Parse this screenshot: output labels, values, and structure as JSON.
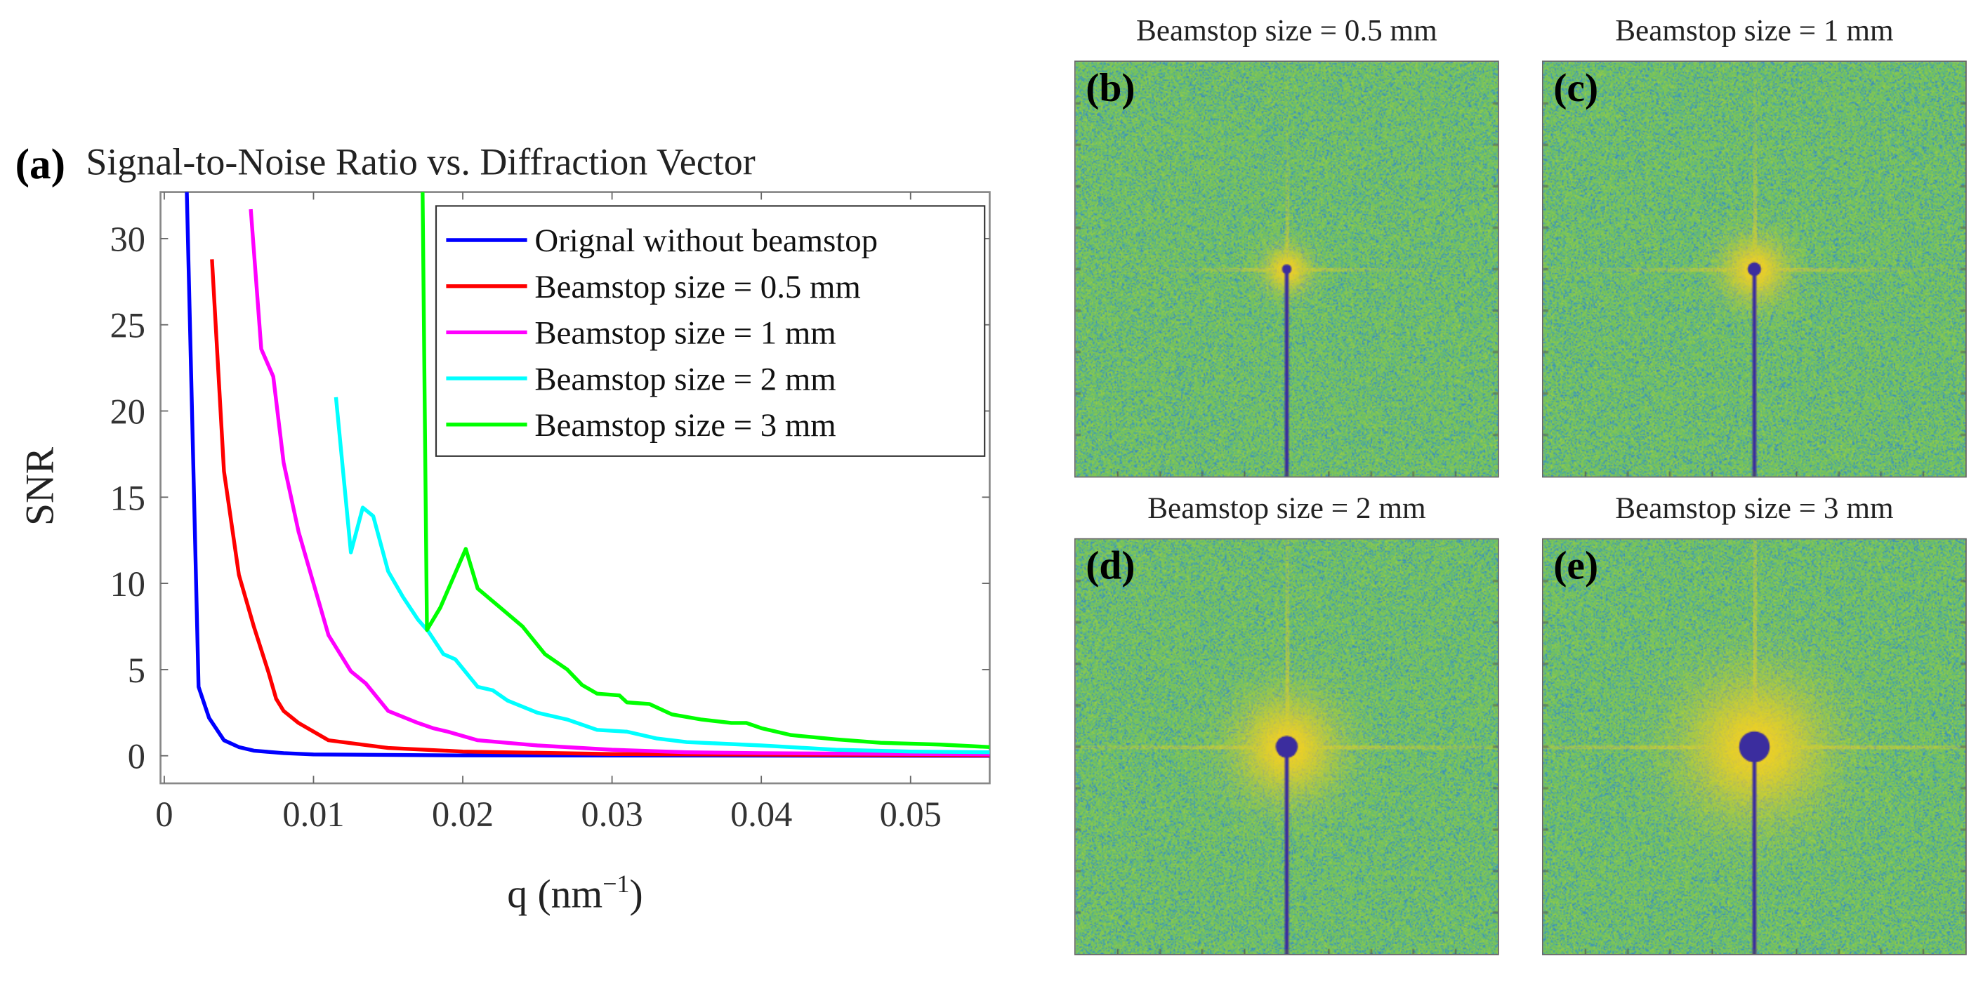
{
  "panel_a": {
    "label": "(a)"
  },
  "chart_data": {
    "type": "line",
    "title": "Signal-to-Noise Ratio vs. Diffraction Vector",
    "xlabel": "q (nm",
    "xlabel_sup": "−1",
    "xlabel_close": ")",
    "ylabel": "SNR",
    "xlim": [
      -0.00025,
      0.0553
    ],
    "ylim": [
      -1.6,
      32.7
    ],
    "xticks": [
      0,
      0.01,
      0.02,
      0.03,
      0.04,
      0.05
    ],
    "xtick_labels": [
      "0",
      "0.01",
      "0.02",
      "0.03",
      "0.04",
      "0.05"
    ],
    "yticks": [
      0,
      5,
      10,
      15,
      20,
      25,
      30
    ],
    "ytick_labels": [
      "0",
      "5",
      "10",
      "15",
      "20",
      "25",
      "30"
    ],
    "grid": false,
    "legend_position": "top-right",
    "series": [
      {
        "name": "Orignal without beamstop",
        "color": "#0000ff",
        "x": [
          0.0015,
          0.0023,
          0.003,
          0.004,
          0.005,
          0.006,
          0.008,
          0.01,
          0.02,
          0.0553
        ],
        "y": [
          33,
          4,
          2.2,
          0.9,
          0.5,
          0.3,
          0.15,
          0.08,
          0.02,
          0
        ]
      },
      {
        "name": "Beamstop size = 0.5 mm",
        "color": "#ff0000",
        "x": [
          0.0032,
          0.004,
          0.005,
          0.006,
          0.007,
          0.0075,
          0.008,
          0.009,
          0.011,
          0.015,
          0.02,
          0.03,
          0.0553
        ],
        "y": [
          28.8,
          16.5,
          10.5,
          7.5,
          4.8,
          3.3,
          2.6,
          1.9,
          0.9,
          0.45,
          0.25,
          0.1,
          0.02
        ]
      },
      {
        "name": "Beamstop size = 1 mm",
        "color": "#ff00ff",
        "x": [
          0.0058,
          0.0065,
          0.0073,
          0.008,
          0.009,
          0.01,
          0.011,
          0.0125,
          0.0135,
          0.015,
          0.017,
          0.018,
          0.019,
          0.021,
          0.025,
          0.03,
          0.035,
          0.04,
          0.0553
        ],
        "y": [
          31.7,
          23.6,
          22.0,
          17,
          13,
          10,
          7,
          4.9,
          4.2,
          2.6,
          1.9,
          1.6,
          1.4,
          0.9,
          0.6,
          0.35,
          0.2,
          0.15,
          0.08
        ]
      },
      {
        "name": "Beamstop size = 2 mm",
        "color": "#00ffff",
        "x": [
          0.0115,
          0.0125,
          0.0133,
          0.014,
          0.015,
          0.016,
          0.017,
          0.0177,
          0.0187,
          0.0195,
          0.021,
          0.022,
          0.023,
          0.025,
          0.027,
          0.029,
          0.031,
          0.033,
          0.035,
          0.04,
          0.045,
          0.05,
          0.0553
        ],
        "y": [
          20.8,
          11.8,
          14.4,
          13.9,
          10.7,
          9.2,
          7.9,
          7.2,
          5.9,
          5.6,
          4.0,
          3.8,
          3.2,
          2.5,
          2.1,
          1.5,
          1.4,
          1.0,
          0.8,
          0.6,
          0.35,
          0.25,
          0.2
        ]
      },
      {
        "name": "Beamstop size = 3 mm",
        "color": "#00ff00",
        "x": [
          0.0173,
          0.0176,
          0.0185,
          0.0202,
          0.021,
          0.0225,
          0.024,
          0.0255,
          0.027,
          0.028,
          0.029,
          0.0305,
          0.031,
          0.0325,
          0.034,
          0.036,
          0.038,
          0.039,
          0.04,
          0.042,
          0.045,
          0.048,
          0.052,
          0.0553
        ],
        "y": [
          33,
          7.3,
          8.6,
          12.0,
          9.7,
          8.6,
          7.5,
          5.9,
          5.0,
          4.1,
          3.6,
          3.5,
          3.1,
          3.0,
          2.4,
          2.1,
          1.9,
          1.9,
          1.6,
          1.2,
          0.95,
          0.75,
          0.65,
          0.5
        ]
      }
    ]
  },
  "images": [
    {
      "label": "(b)",
      "title": "Beamstop size = 0.5 mm",
      "beamstop_mm": 0.5
    },
    {
      "label": "(c)",
      "title": "Beamstop size = 1 mm",
      "beamstop_mm": 1
    },
    {
      "label": "(d)",
      "title": "Beamstop size = 2 mm",
      "beamstop_mm": 2
    },
    {
      "label": "(e)",
      "title": "Beamstop size = 3 mm",
      "beamstop_mm": 3
    }
  ],
  "colors": {
    "background": "#7cc45c",
    "beamstop": "#3b2d9e",
    "glow": "#ffd020"
  }
}
